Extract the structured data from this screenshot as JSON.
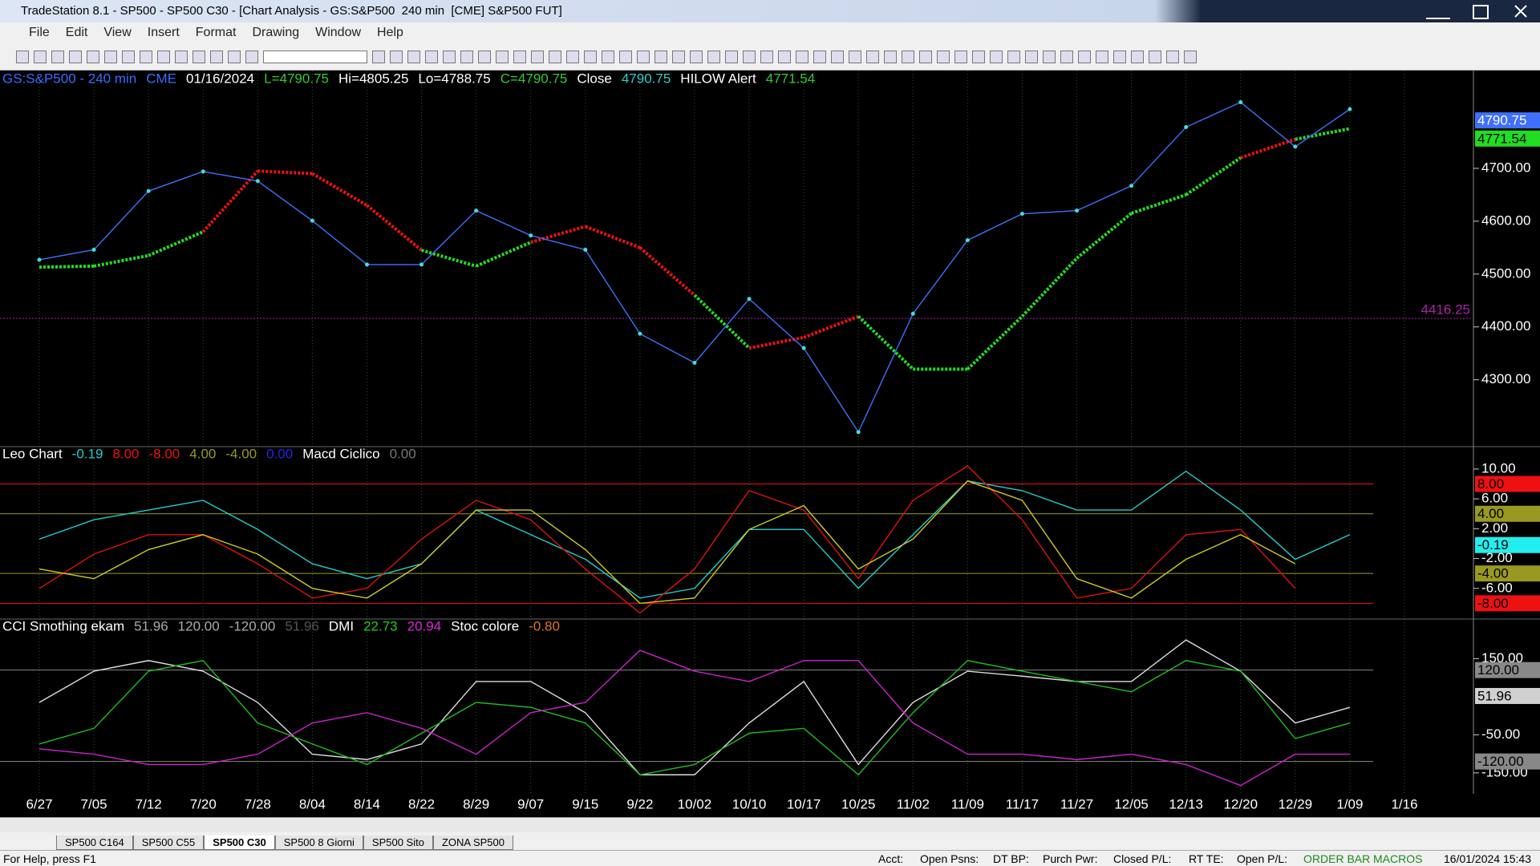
{
  "window": {
    "title": "TradeStation 8.1 - SP500 - SP500 C30 - [Chart Analysis - GS:S&P500  240 min  [CME] S&P500 FUT]"
  },
  "menu": [
    "File",
    "Edit",
    "View",
    "Insert",
    "Format",
    "Drawing",
    "Window",
    "Help"
  ],
  "chart_data": [
    {
      "type": "line",
      "header": [
        {
          "text": "GS:S&P500 - 240 min",
          "color": "#3b6cff"
        },
        {
          "text": "CME",
          "color": "#3b6cff"
        },
        {
          "text": "01/16/2024",
          "color": "#ffffff"
        },
        {
          "text": "L=4790.75",
          "color": "#33cc33"
        },
        {
          "text": "Hi=4805.25",
          "color": "#ffffff"
        },
        {
          "text": "Lo=4788.75",
          "color": "#ffffff"
        },
        {
          "text": "C=4790.75",
          "color": "#33cc33"
        },
        {
          "text": "Close",
          "color": "#ffffff"
        },
        {
          "text": "4790.75",
          "color": "#33cccc"
        },
        {
          "text": "HILOW Alert",
          "color": "#ffffff"
        },
        {
          "text": "4771.54",
          "color": "#33cc33"
        }
      ],
      "categories": [
        "6/27",
        "7/05",
        "7/12",
        "7/20",
        "7/28",
        "8/04",
        "8/14",
        "8/22",
        "8/29",
        "9/07",
        "9/15",
        "9/22",
        "10/02",
        "10/10",
        "10/17",
        "10/25",
        "11/02",
        "11/09",
        "11/17",
        "11/27",
        "12/05",
        "12/13",
        "12/20",
        "12/29",
        "1/09",
        "1/16"
      ],
      "series": [
        {
          "color": "#3f6fff",
          "values": [
            4527,
            4546,
            4657,
            4694,
            4676,
            4601,
            4518,
            4518,
            4620,
            4573,
            4546,
            4387,
            4332,
            4453,
            4360,
            4201,
            4425,
            4564,
            4614,
            4620,
            4667,
            4778,
            4825,
            4741,
            4812,
            null
          ]
        },
        {
          "color": "#22dd22",
          "color_above": "#ee1111",
          "values": [
            4513,
            4515,
            4535,
            4580,
            4695,
            4690,
            4630,
            4545,
            4515,
            4560,
            4590,
            4550,
            4460,
            4360,
            4380,
            4420,
            4320,
            4320,
            4420,
            4530,
            4615,
            4650,
            4720,
            4755,
            4775,
            null
          ]
        }
      ],
      "ylim": [
        4175,
        4885
      ],
      "yticks": [
        {
          "value": 4300,
          "label": "4300.00"
        },
        {
          "value": 4400,
          "label": "4400.00"
        },
        {
          "value": 4500,
          "label": "4500.00"
        },
        {
          "value": 4600,
          "label": "4600.00"
        },
        {
          "value": 4700,
          "label": "4700.00"
        }
      ],
      "ref_line": 4416.25,
      "last_price": 4790.75,
      "alert_value": 4771.54
    },
    {
      "type": "line",
      "legend": [
        {
          "text": "Leo Chart",
          "color": "#ffffff"
        },
        {
          "text": "-0.19",
          "color": "#22cccc"
        },
        {
          "text": "8.00",
          "color": "#ee1111"
        },
        {
          "text": "-8.00",
          "color": "#ee1111"
        },
        {
          "text": "4.00",
          "color": "#999922"
        },
        {
          "text": "-4.00",
          "color": "#999922"
        },
        {
          "text": "0.00",
          "color": "#2222ee"
        },
        {
          "text": "Macd Ciclico",
          "color": "#ffffff"
        },
        {
          "text": "0.00",
          "color": "#777777"
        }
      ],
      "series": [
        {
          "color": "#22cccc",
          "values": [
            0.6,
            3.2,
            4.5,
            5.8,
            1.9,
            -2.7,
            -4.7,
            -2.7,
            4.5,
            1.2,
            -2.1,
            -7.3,
            -6,
            1.9,
            1.9,
            -6,
            1.2,
            8.4,
            7.1,
            4.5,
            4.5,
            9.7,
            4.5,
            -2.1,
            1.2,
            null
          ]
        },
        {
          "color": "#dd1111",
          "values": [
            -6,
            -1.4,
            1.2,
            1.2,
            -2.7,
            -7.3,
            -6,
            0.6,
            5.8,
            3.2,
            -3.4,
            -9.3,
            -3.4,
            7.1,
            4.5,
            -4.7,
            5.8,
            10.4,
            3.2,
            -7.3,
            -6,
            1.2,
            1.9,
            -6,
            null,
            null
          ]
        },
        {
          "color": "#cccc22",
          "values": [
            -3.4,
            -4.7,
            -0.8,
            1.2,
            -1.4,
            -6,
            -7.3,
            -2.7,
            4.5,
            4.5,
            -0.8,
            -8,
            -7.3,
            1.9,
            5.1,
            -3.4,
            0.6,
            8.4,
            5.8,
            -4.7,
            -7.3,
            -2.1,
            1.2,
            -2.7,
            null,
            null
          ]
        }
      ],
      "ylim": [
        -10,
        13
      ],
      "yticks": [
        {
          "value": -6,
          "label": "-6.00"
        },
        {
          "value": -2,
          "label": "-2.00"
        },
        {
          "value": 2,
          "label": "2.00"
        },
        {
          "value": 6,
          "label": "6.00"
        },
        {
          "value": 10,
          "label": "10.00"
        }
      ],
      "levels": [
        {
          "value": 8,
          "label": "8.00",
          "color": "#ee1111"
        },
        {
          "value": 4,
          "label": "4.00",
          "color": "#999922"
        },
        {
          "value": -4,
          "label": "-4.00",
          "color": "#999922"
        },
        {
          "value": -8,
          "label": "-8.00",
          "color": "#ee1111"
        }
      ],
      "last_value": {
        "value": -0.19,
        "label": "-0.19",
        "color": "#22eeee"
      }
    },
    {
      "type": "line",
      "legend": [
        {
          "text": "CCI Smothing ekam",
          "color": "#ffffff"
        },
        {
          "text": "51.96",
          "color": "#aaaaaa"
        },
        {
          "text": "120.00",
          "color": "#aaaaaa"
        },
        {
          "text": "-120.00",
          "color": "#aaaaaa"
        },
        {
          "text": "51.96",
          "color": "#555555"
        },
        {
          "text": "DMI",
          "color": "#ffffff"
        },
        {
          "text": "22.73",
          "color": "#22cc22"
        },
        {
          "text": "20.94",
          "color": "#dd22dd"
        },
        {
          "text": "Stoc colore",
          "color": "#ffffff"
        },
        {
          "text": "-0.80",
          "color": "#dd7722"
        }
      ],
      "series": [
        {
          "color": "#dddddd",
          "values": [
            35,
            117,
            145,
            117,
            35,
            -101,
            -115,
            -74,
            90,
            90,
            8,
            -155,
            -155,
            -19,
            90,
            -128,
            35,
            117,
            104,
            90,
            90,
            199,
            117,
            -19,
            22,
            null
          ]
        },
        {
          "color": "#22bb22",
          "values": [
            -74,
            -33,
            117,
            145,
            -19,
            -74,
            -128,
            -46,
            35,
            22,
            -19,
            -155,
            -128,
            -46,
            -33,
            -155,
            8,
            145,
            117,
            90,
            63,
            145,
            117,
            -60,
            -19,
            null
          ]
        },
        {
          "color": "#cc22cc",
          "values": [
            -87,
            -101,
            -128,
            -128,
            -101,
            -19,
            8,
            -33,
            -101,
            8,
            35,
            172,
            117,
            90,
            145,
            145,
            -19,
            -101,
            -101,
            -115,
            -101,
            -128,
            -183,
            -101,
            -101,
            null
          ]
        }
      ],
      "ylim": [
        -205,
        254
      ],
      "yticks": [
        {
          "value": -150,
          "label": "-150.00"
        },
        {
          "value": -50,
          "label": "-50.00"
        },
        {
          "value": 150,
          "label": "150.00"
        }
      ],
      "levels": [
        {
          "value": 120,
          "label": "120.00",
          "color": "#888888"
        },
        {
          "value": -120,
          "label": "-120.00",
          "color": "#888888"
        }
      ],
      "last_value": {
        "value": 51.96,
        "label": "51.96",
        "color": "#d0d0d0"
      }
    }
  ],
  "tabs": [
    "SP500 C164",
    "SP500 C55",
    "SP500 C30",
    "SP500 8 Giorni",
    "SP500 Sito",
    "ZONA SP500"
  ],
  "status": {
    "help": "For Help, press F1",
    "fields": [
      "Acct:",
      "Open Psns:",
      "DT BP:",
      "Purch Pwr:",
      "Closed P/L:",
      "RT TE:",
      "Open P/L:"
    ],
    "order_bar": "ORDER BAR",
    "macros": "MACROS",
    "datetime": "16/01/2024 15:43"
  }
}
